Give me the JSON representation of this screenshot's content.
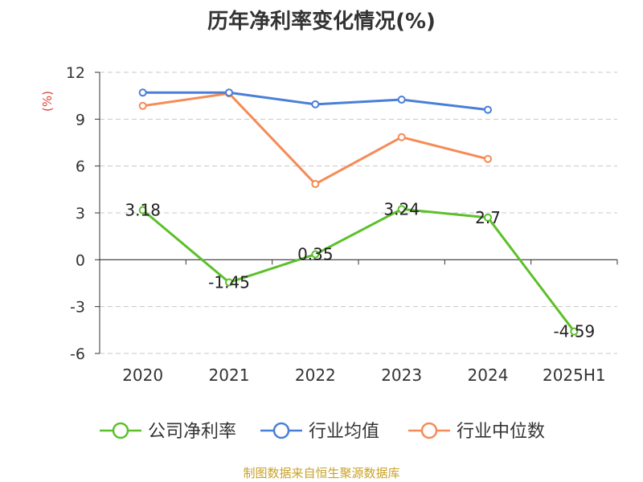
{
  "title": "历年净利率变化情况(%)",
  "source": "制图数据来自恒生聚源数据库",
  "chart_data": {
    "type": "line",
    "title": "历年净利率变化情况(%)",
    "ylabel": "(%)",
    "categories": [
      "2020",
      "2021",
      "2022",
      "2023",
      "2024",
      "2025H1"
    ],
    "ylim": [
      -6,
      12
    ],
    "yticks": [
      12,
      9,
      6,
      3,
      0,
      -3,
      -6
    ],
    "grid": true,
    "legend_position": "bottom",
    "series": [
      {
        "name": "公司净利率",
        "color": "#5cc02a",
        "show_labels": true,
        "labels": [
          "3.18",
          "-1.45",
          "0.35",
          "3.24",
          "2.7",
          "-4.59"
        ],
        "values": [
          3.18,
          -1.45,
          0.35,
          3.24,
          2.7,
          -4.59
        ]
      },
      {
        "name": "行业均值",
        "color": "#4a7fd8",
        "show_labels": false,
        "values": [
          10.7,
          10.7,
          9.95,
          10.25,
          9.6,
          null
        ]
      },
      {
        "name": "行业中位数",
        "color": "#f58b56",
        "show_labels": false,
        "values": [
          9.85,
          10.65,
          4.85,
          7.85,
          6.45,
          null
        ]
      }
    ]
  }
}
